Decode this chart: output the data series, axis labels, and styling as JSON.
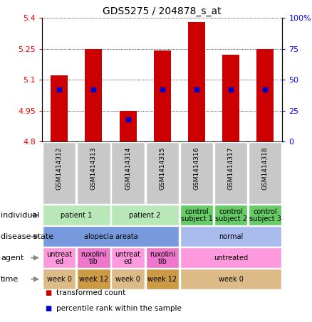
{
  "title": "GDS5275 / 204878_s_at",
  "samples": [
    "GSM1414312",
    "GSM1414313",
    "GSM1414314",
    "GSM1414315",
    "GSM1414316",
    "GSM1414317",
    "GSM1414318"
  ],
  "bar_values": [
    5.12,
    5.25,
    4.95,
    5.24,
    5.38,
    5.22,
    5.25
  ],
  "percentile_values": [
    42,
    42,
    18,
    42,
    42,
    42,
    42
  ],
  "y_min": 4.8,
  "y_max": 5.4,
  "y_ticks_left": [
    4.8,
    4.95,
    5.1,
    5.25,
    5.4
  ],
  "y_ticks_right_labels": [
    "0",
    "25",
    "50",
    "75",
    "100%"
  ],
  "y_ticks_right_pos": [
    4.8,
    4.95,
    5.1,
    5.25,
    5.4
  ],
  "bar_color": "#cc0000",
  "percentile_color": "#0000cc",
  "annotation_rows": [
    {
      "label": "individual",
      "cells": [
        {
          "text": "patient 1",
          "span": 2,
          "color": "#b8e8b8"
        },
        {
          "text": "patient 2",
          "span": 2,
          "color": "#b8e8b8"
        },
        {
          "text": "control\nsubject 1",
          "span": 1,
          "color": "#66cc66"
        },
        {
          "text": "control\nsubject 2",
          "span": 1,
          "color": "#66cc66"
        },
        {
          "text": "control\nsubject 3",
          "span": 1,
          "color": "#66cc66"
        }
      ]
    },
    {
      "label": "disease state",
      "cells": [
        {
          "text": "alopecia areata",
          "span": 4,
          "color": "#7799dd"
        },
        {
          "text": "normal",
          "span": 3,
          "color": "#aabbee"
        }
      ]
    },
    {
      "label": "agent",
      "cells": [
        {
          "text": "untreat\ned",
          "span": 1,
          "color": "#ff99dd"
        },
        {
          "text": "ruxolini\ntib",
          "span": 1,
          "color": "#ee77cc"
        },
        {
          "text": "untreat\ned",
          "span": 1,
          "color": "#ff99dd"
        },
        {
          "text": "ruxolini\ntib",
          "span": 1,
          "color": "#ee77cc"
        },
        {
          "text": "untreated",
          "span": 3,
          "color": "#ff99dd"
        }
      ]
    },
    {
      "label": "time",
      "cells": [
        {
          "text": "week 0",
          "span": 1,
          "color": "#ddbb88"
        },
        {
          "text": "week 12",
          "span": 1,
          "color": "#cc9944"
        },
        {
          "text": "week 0",
          "span": 1,
          "color": "#ddbb88"
        },
        {
          "text": "week 12",
          "span": 1,
          "color": "#cc9944"
        },
        {
          "text": "week 0",
          "span": 3,
          "color": "#ddbb88"
        }
      ]
    }
  ],
  "legend": [
    {
      "color": "#cc0000",
      "label": "transformed count"
    },
    {
      "color": "#0000cc",
      "label": "percentile rank within the sample"
    }
  ],
  "sample_bg": "#c8c8c8"
}
